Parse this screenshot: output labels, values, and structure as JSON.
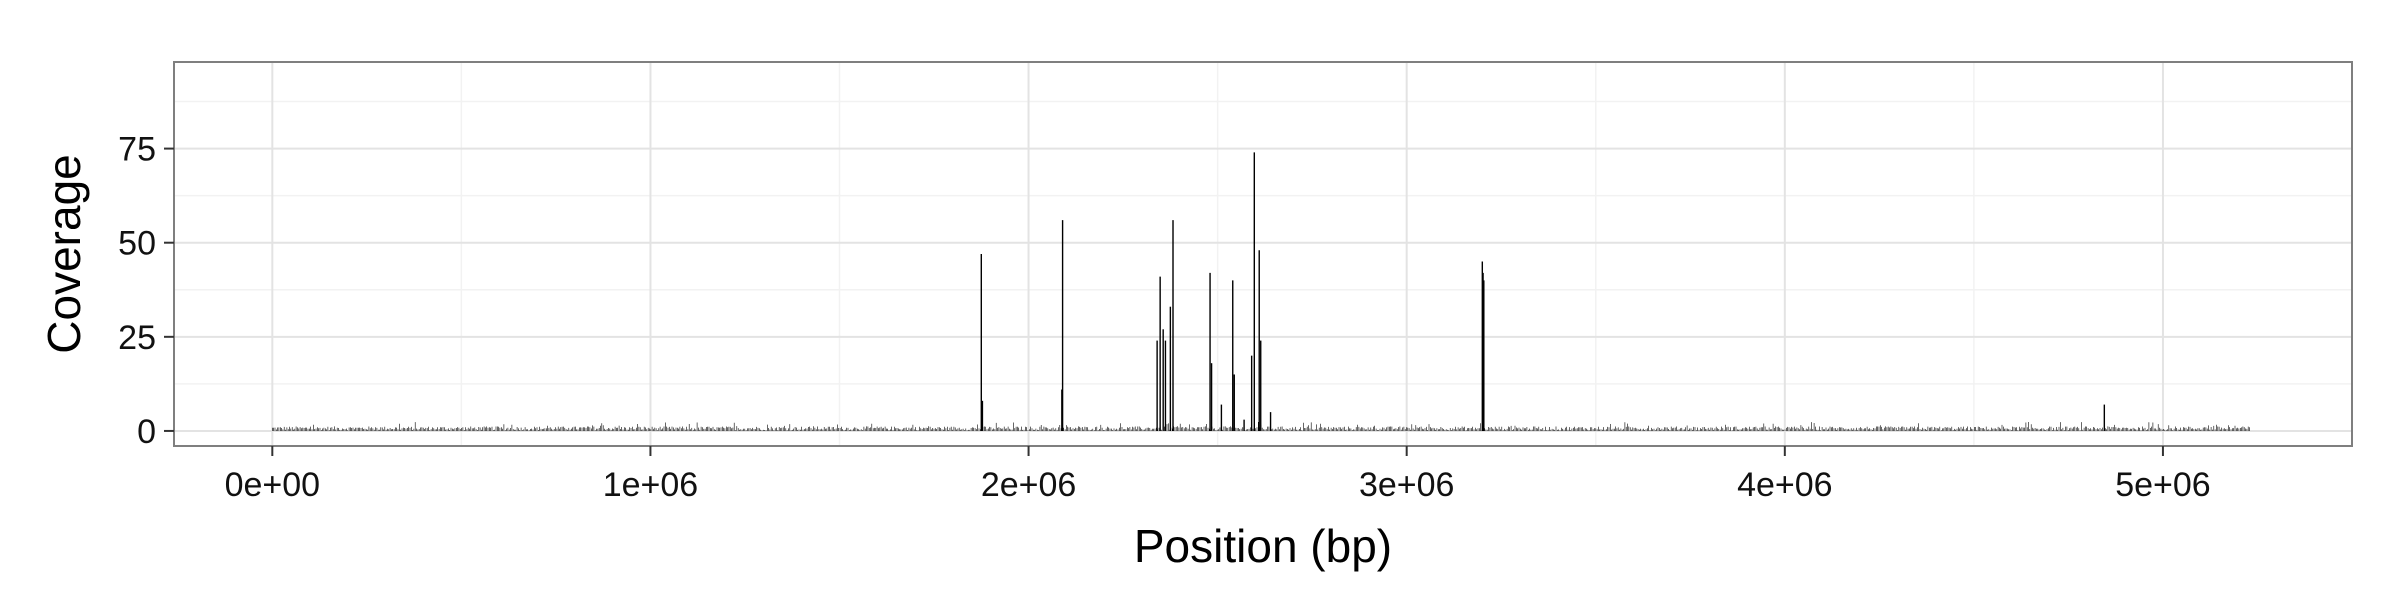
{
  "chart_data": {
    "type": "bar",
    "title": "",
    "xlabel": "Position (bp)",
    "ylabel": "Coverage",
    "xlim": [
      -260000,
      5500000
    ],
    "ylim": [
      -4,
      98
    ],
    "x_ticks": [
      0,
      1000000,
      2000000,
      3000000,
      4000000,
      5000000
    ],
    "x_tick_labels": [
      "0e+00",
      "1e+06",
      "2e+06",
      "3e+06",
      "4e+06",
      "5e+06"
    ],
    "y_ticks": [
      0,
      25,
      50,
      75
    ],
    "y_tick_labels": [
      "0",
      "25",
      "50",
      "75"
    ],
    "grid": true,
    "legend": "none",
    "colors": {
      "bar": "#000000",
      "panel_border": "#7f7f7f",
      "grid_major": "#e3e3e3",
      "grid_minor": "#f2f2f2"
    },
    "baseline": {
      "range": [
        0,
        5230000
      ],
      "typical_coverage": 1
    },
    "peaks": [
      {
        "x": 1875000,
        "y": 47
      },
      {
        "x": 1878000,
        "y": 8
      },
      {
        "x": 2090000,
        "y": 56
      },
      {
        "x": 2088000,
        "y": 11
      },
      {
        "x": 2340000,
        "y": 24
      },
      {
        "x": 2348000,
        "y": 41
      },
      {
        "x": 2356000,
        "y": 27
      },
      {
        "x": 2362000,
        "y": 24
      },
      {
        "x": 2375000,
        "y": 33
      },
      {
        "x": 2382000,
        "y": 56
      },
      {
        "x": 2480000,
        "y": 42
      },
      {
        "x": 2484000,
        "y": 18
      },
      {
        "x": 2510000,
        "y": 7
      },
      {
        "x": 2540000,
        "y": 40
      },
      {
        "x": 2544000,
        "y": 15
      },
      {
        "x": 2570000,
        "y": 3
      },
      {
        "x": 2590000,
        "y": 20
      },
      {
        "x": 2597000,
        "y": 74
      },
      {
        "x": 2610000,
        "y": 48
      },
      {
        "x": 2614000,
        "y": 24
      },
      {
        "x": 2640000,
        "y": 5
      },
      {
        "x": 3200000,
        "y": 45
      },
      {
        "x": 3202000,
        "y": 42
      },
      {
        "x": 3204000,
        "y": 40
      },
      {
        "x": 4845000,
        "y": 7
      }
    ]
  }
}
